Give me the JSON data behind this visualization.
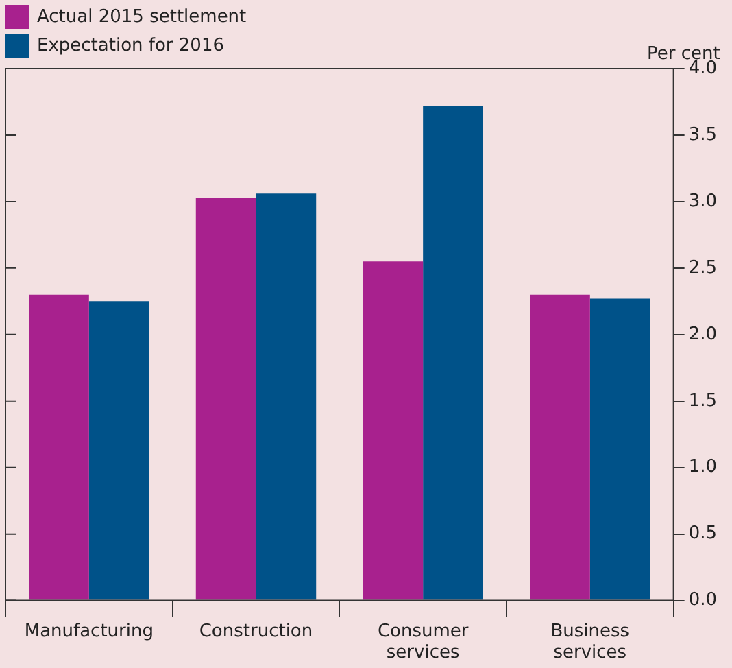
{
  "chart_data": {
    "type": "bar",
    "ylabel": "Per cent",
    "categories": [
      "Manufacturing",
      "Construction",
      "Consumer services",
      "Business services"
    ],
    "series": [
      {
        "name": "Actual 2015 settlement",
        "color": "#a8218e",
        "values": [
          2.3,
          3.03,
          2.55,
          2.3
        ]
      },
      {
        "name": "Expectation for 2016",
        "color": "#005289",
        "values": [
          2.25,
          3.06,
          3.72,
          2.27
        ]
      }
    ],
    "ylim": [
      0,
      4
    ],
    "yticks": [
      {
        "value": 0,
        "label": "0.0"
      },
      0.5,
      {
        "value": 1,
        "label": "1.0"
      },
      1.5,
      {
        "value": 2,
        "label": "2.0"
      },
      2.5,
      {
        "value": 3,
        "label": "3.0"
      },
      3.5,
      {
        "value": 4,
        "label": "4.0"
      }
    ],
    "grid": false,
    "legend": "top left"
  }
}
